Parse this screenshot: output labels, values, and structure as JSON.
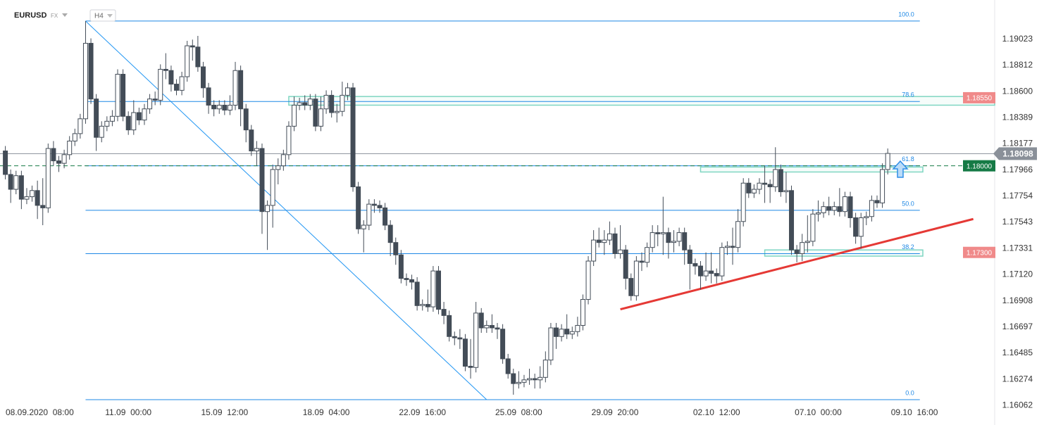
{
  "chart_data": {
    "type": "candlestick",
    "symbol": "EURUSD",
    "market": "FX",
    "timeframe": "H4",
    "open": [
      1.1812,
      1.1793,
      1.1781,
      1.1792,
      1.1773,
      1.1775,
      1.178,
      1.1768,
      1.1766,
      1.1814,
      1.1804,
      1.1802,
      1.1809,
      1.182,
      1.1826,
      1.1838,
      1.1899,
      1.1854,
      1.1823,
      1.1832,
      1.1836,
      1.184,
      1.1874,
      1.184,
      1.1829,
      1.1843,
      1.1837,
      1.1846,
      1.1854,
      1.1853,
      1.1878,
      1.1877,
      1.1866,
      1.1861,
      1.1872,
      1.1897,
      1.1896,
      1.188,
      1.1863,
      1.1849,
      1.1846,
      1.1849,
      1.1845,
      1.1849,
      1.1877,
      1.1846,
      1.1829,
      1.1812,
      1.1814,
      1.1763,
      1.1768,
      1.1797,
      1.18,
      1.1809,
      1.1832,
      1.1849,
      1.1851,
      1.1849,
      1.1854,
      1.1832,
      1.1846,
      1.1857,
      1.1843,
      1.1844,
      1.1857,
      1.1863,
      1.1783,
      1.1749,
      1.1752,
      1.1769,
      1.1768,
      1.1766,
      1.1752,
      1.1738,
      1.1728,
      1.1709,
      1.1708,
      1.1706,
      1.1687,
      1.1688,
      1.1686,
      1.1715,
      1.1684,
      1.1679,
      1.1662,
      1.1661,
      1.166,
      1.1638,
      1.1637,
      1.1681,
      1.1669,
      1.1671,
      1.1669,
      1.1668,
      1.1644,
      1.1632,
      1.1624,
      1.1625,
      1.1627,
      1.1628,
      1.1627,
      1.1629,
      1.1643,
      1.1669,
      1.1662,
      1.1668,
      1.1664,
      1.1666,
      1.1671,
      1.1692,
      1.1723,
      1.174,
      1.1738,
      1.174,
      1.1745,
      1.1729,
      1.1732,
      1.1709,
      1.1695,
      1.1723,
      1.1722,
      1.1734,
      1.1746,
      1.1745,
      1.1746,
      1.1738,
      1.1739,
      1.1746,
      1.1732,
      1.1721,
      1.1719,
      1.1711,
      1.1715,
      1.1713,
      1.1711,
      1.1734,
      1.1735,
      1.1734,
      1.1755,
      1.1786,
      1.1778,
      1.1781,
      1.1786,
      1.1785,
      1.1783,
      1.1797,
      1.1779,
      1.178,
      1.1732,
      1.1729,
      1.1738,
      1.1739,
      1.1761,
      1.1762,
      1.1767,
      1.1764,
      1.1767,
      1.1763,
      1.1775,
      1.1758,
      1.1743,
      1.1758,
      1.1759,
      1.1772,
      1.177,
      1.1797
    ],
    "high": [
      1.1816,
      1.1797,
      1.1796,
      1.1796,
      1.1782,
      1.1784,
      1.1788,
      1.179,
      1.1818,
      1.182,
      1.1808,
      1.1813,
      1.1824,
      1.183,
      1.1842,
      1.1917,
      1.1903,
      1.1858,
      1.1836,
      1.184,
      1.1845,
      1.1878,
      1.1878,
      1.1844,
      1.1853,
      1.1847,
      1.185,
      1.1858,
      1.186,
      1.1882,
      1.1891,
      1.1881,
      1.187,
      1.1876,
      1.1901,
      1.1902,
      1.1905,
      1.1884,
      1.1867,
      1.1853,
      1.1853,
      1.1853,
      1.1857,
      1.1884,
      1.1881,
      1.185,
      1.1833,
      1.182,
      1.1818,
      1.1772,
      1.1801,
      1.1806,
      1.1813,
      1.1836,
      1.1856,
      1.1855,
      1.1857,
      1.1858,
      1.1858,
      1.1856,
      1.1861,
      1.1861,
      1.185,
      1.1868,
      1.1867,
      1.1867,
      1.1787,
      1.1756,
      1.1773,
      1.1773,
      1.1772,
      1.177,
      1.1756,
      1.1742,
      1.1732,
      1.1713,
      1.1712,
      1.171,
      1.1692,
      1.17,
      1.1719,
      1.1719,
      1.169,
      1.1683,
      1.1666,
      1.1668,
      1.1664,
      1.166,
      1.169,
      1.1685,
      1.1675,
      1.168,
      1.1673,
      1.1672,
      1.1648,
      1.1636,
      1.1634,
      1.1631,
      1.1636,
      1.1632,
      1.1638,
      1.165,
      1.1673,
      1.1673,
      1.1672,
      1.168,
      1.167,
      1.1678,
      1.1696,
      1.1727,
      1.1748,
      1.175,
      1.1748,
      1.1755,
      1.175,
      1.1752,
      1.1736,
      1.1713,
      1.1727,
      1.173,
      1.1738,
      1.1752,
      1.1752,
      1.1775,
      1.175,
      1.1748,
      1.175,
      1.175,
      1.1736,
      1.1725,
      1.1723,
      1.173,
      1.173,
      1.1717,
      1.1738,
      1.1739,
      1.175,
      1.1765,
      1.179,
      1.179,
      1.1785,
      1.179,
      1.18,
      1.1789,
      1.1815,
      1.1801,
      1.1795,
      1.1784,
      1.1736,
      1.1745,
      1.176,
      1.1765,
      1.1772,
      1.1771,
      1.1775,
      1.1771,
      1.1782,
      1.1779,
      1.1779,
      1.1762,
      1.1762,
      1.1763,
      1.1776,
      1.1776,
      1.1802,
      1.1814
    ],
    "low": [
      1.1789,
      1.177,
      1.1777,
      1.1765,
      1.1769,
      1.1771,
      1.1757,
      1.1752,
      1.1762,
      1.18,
      1.1795,
      1.1798,
      1.1805,
      1.1816,
      1.1822,
      1.1834,
      1.185,
      1.1812,
      1.1819,
      1.1828,
      1.1832,
      1.1836,
      1.1836,
      1.1825,
      1.1825,
      1.1833,
      1.1833,
      1.1842,
      1.1849,
      1.1849,
      1.187,
      1.186,
      1.1857,
      1.1857,
      1.1868,
      1.1885,
      1.1876,
      1.1855,
      1.1842,
      1.184,
      1.1842,
      1.1841,
      1.1841,
      1.1845,
      1.1832,
      1.1819,
      1.1808,
      1.18,
      1.1745,
      1.1732,
      1.175,
      1.1785,
      1.1796,
      1.1805,
      1.1828,
      1.1845,
      1.1845,
      1.1845,
      1.1828,
      1.1828,
      1.1842,
      1.1839,
      1.1835,
      1.184,
      1.1853,
      1.1779,
      1.1745,
      1.173,
      1.1748,
      1.1762,
      1.1762,
      1.1748,
      1.1727,
      1.172,
      1.1705,
      1.1703,
      1.17,
      1.1683,
      1.1683,
      1.1682,
      1.1682,
      1.168,
      1.1672,
      1.1658,
      1.1655,
      1.1652,
      1.1634,
      1.1628,
      1.1633,
      1.1665,
      1.1665,
      1.1665,
      1.166,
      1.164,
      1.1628,
      1.1615,
      1.162,
      1.1621,
      1.1623,
      1.162,
      1.162,
      1.1625,
      1.1639,
      1.1652,
      1.1658,
      1.166,
      1.166,
      1.1662,
      1.1667,
      1.1688,
      1.1719,
      1.1734,
      1.1728,
      1.1736,
      1.1725,
      1.1725,
      1.17,
      1.1691,
      1.1691,
      1.1715,
      1.1718,
      1.173,
      1.1735,
      1.1728,
      1.1725,
      1.173,
      1.1735,
      1.172,
      1.17,
      1.1712,
      1.17,
      1.1707,
      1.1705,
      1.1705,
      1.1707,
      1.1728,
      1.172,
      1.173,
      1.1751,
      1.1774,
      1.1774,
      1.1777,
      1.177,
      1.177,
      1.1779,
      1.1775,
      1.177,
      1.1728,
      1.1722,
      1.1723,
      1.173,
      1.1735,
      1.1755,
      1.1758,
      1.176,
      1.176,
      1.1759,
      1.1759,
      1.175,
      1.1737,
      1.1733,
      1.1752,
      1.1755,
      1.1766,
      1.1766,
      1.1793
    ],
    "close": [
      1.1793,
      1.1781,
      1.1792,
      1.1773,
      1.1775,
      1.178,
      1.1768,
      1.1766,
      1.1814,
      1.1804,
      1.1802,
      1.1809,
      1.182,
      1.1826,
      1.1838,
      1.1899,
      1.1854,
      1.1823,
      1.1832,
      1.1836,
      1.184,
      1.1874,
      1.184,
      1.1829,
      1.1843,
      1.1837,
      1.1846,
      1.1854,
      1.1853,
      1.1878,
      1.1877,
      1.1866,
      1.1861,
      1.1872,
      1.1897,
      1.1896,
      1.188,
      1.1863,
      1.1849,
      1.1846,
      1.1849,
      1.1845,
      1.1849,
      1.1877,
      1.1846,
      1.1829,
      1.1812,
      1.1814,
      1.1763,
      1.1768,
      1.1797,
      1.18,
      1.1809,
      1.1832,
      1.1849,
      1.1851,
      1.1849,
      1.1854,
      1.1832,
      1.1846,
      1.1857,
      1.1843,
      1.1844,
      1.1857,
      1.1863,
      1.1783,
      1.1749,
      1.1752,
      1.1769,
      1.1768,
      1.1766,
      1.1752,
      1.1738,
      1.1728,
      1.1709,
      1.1708,
      1.1706,
      1.1687,
      1.1688,
      1.1686,
      1.1715,
      1.1684,
      1.1679,
      1.1662,
      1.1661,
      1.166,
      1.1638,
      1.1637,
      1.1681,
      1.1669,
      1.1671,
      1.1669,
      1.1668,
      1.1644,
      1.1632,
      1.1624,
      1.1625,
      1.1627,
      1.1628,
      1.1627,
      1.1629,
      1.1643,
      1.1669,
      1.1662,
      1.1668,
      1.1664,
      1.1666,
      1.1671,
      1.1692,
      1.1723,
      1.174,
      1.1738,
      1.174,
      1.1745,
      1.1729,
      1.1732,
      1.1709,
      1.1695,
      1.1723,
      1.1722,
      1.1734,
      1.1746,
      1.1745,
      1.1746,
      1.1738,
      1.1739,
      1.1746,
      1.1732,
      1.1721,
      1.1719,
      1.1711,
      1.1715,
      1.1713,
      1.1711,
      1.1734,
      1.1735,
      1.1734,
      1.1755,
      1.1786,
      1.1778,
      1.1781,
      1.1786,
      1.1785,
      1.1783,
      1.1797,
      1.1779,
      1.178,
      1.1732,
      1.1729,
      1.1738,
      1.1739,
      1.1761,
      1.1762,
      1.1767,
      1.1764,
      1.1767,
      1.1763,
      1.1775,
      1.1758,
      1.1743,
      1.1758,
      1.1759,
      1.1772,
      1.177,
      1.1797,
      1.181
    ],
    "up_color": "#ffffff",
    "down_color": "#434c57",
    "outline_color": "#434c57",
    "xlim": [
      -1,
      185
    ],
    "xticks": [
      {
        "value": 0,
        "label": "08.09.2020  08:00"
      },
      {
        "value": 23,
        "label": "11.09  00:00"
      },
      {
        "value": 41,
        "label": "15.09  12:00"
      },
      {
        "value": 60,
        "label": "18.09  04:00"
      },
      {
        "value": 78,
        "label": "22.09  16:00"
      },
      {
        "value": 96,
        "label": "25.09  08:00"
      },
      {
        "value": 114,
        "label": "29.09  20:00"
      },
      {
        "value": 133,
        "label": "02.10  12:00"
      },
      {
        "value": 152,
        "label": "07.10  00:00"
      },
      {
        "value": 170,
        "label": "09.10  16:00"
      }
    ],
    "ylim": [
      1.1607,
      1.1934
    ],
    "yticks": [
      1.19023,
      1.18812,
      {
        "value": 1.186,
        "label": "1.18600"
      },
      1.18389,
      1.18177,
      1.17966,
      1.17754,
      1.17543,
      1.17331,
      {
        "value": 1.1712,
        "label": "1.17120"
      },
      1.16908,
      1.16697,
      1.16485,
      1.16274,
      1.16062
    ],
    "fib_levels": {
      "from": 15,
      "to": 171,
      "color": "#1e88e5",
      "levels": [
        {
          "label": "100.0",
          "price": 1.1917
        },
        {
          "label": "78.6",
          "price": 1.1852
        },
        {
          "label": "61.8",
          "price": 1.18
        },
        {
          "label": "50.0",
          "price": 1.1764
        },
        {
          "label": "38.2",
          "price": 1.1729
        },
        {
          "label": "0.0",
          "price": 1.1611
        }
      ]
    },
    "trendlines": [
      {
        "from": 15,
        "from_price": 1.1917,
        "to": 90,
        "to_price": 1.1611,
        "color": "#2196f3",
        "width": 1
      },
      {
        "from": 115,
        "from_price": 1.1684,
        "to": 181,
        "to_price": 1.1757,
        "color": "#e53935",
        "width": 3
      }
    ],
    "zones": [
      {
        "from": 53,
        "top": 1.1856,
        "bottom": 1.1849
      },
      {
        "from": 130,
        "top": 1.1799,
        "bottom": 1.1795
      },
      {
        "from": 142,
        "top": 1.1732,
        "bottom": 1.1727
      }
    ],
    "zone_color": "#7fd6c2",
    "current_price": {
      "value": 1.18098,
      "label": "1.18098",
      "color": "#8a9099"
    },
    "price_tags": [
      {
        "value": 1.1855,
        "label": "1.18550",
        "color": "#f08a8a"
      },
      {
        "value": 1.18,
        "label": "1.18000",
        "color": "#157a45",
        "dashed": true
      },
      {
        "value": 1.173,
        "label": "1.17300",
        "color": "#f08a8a"
      }
    ]
  }
}
